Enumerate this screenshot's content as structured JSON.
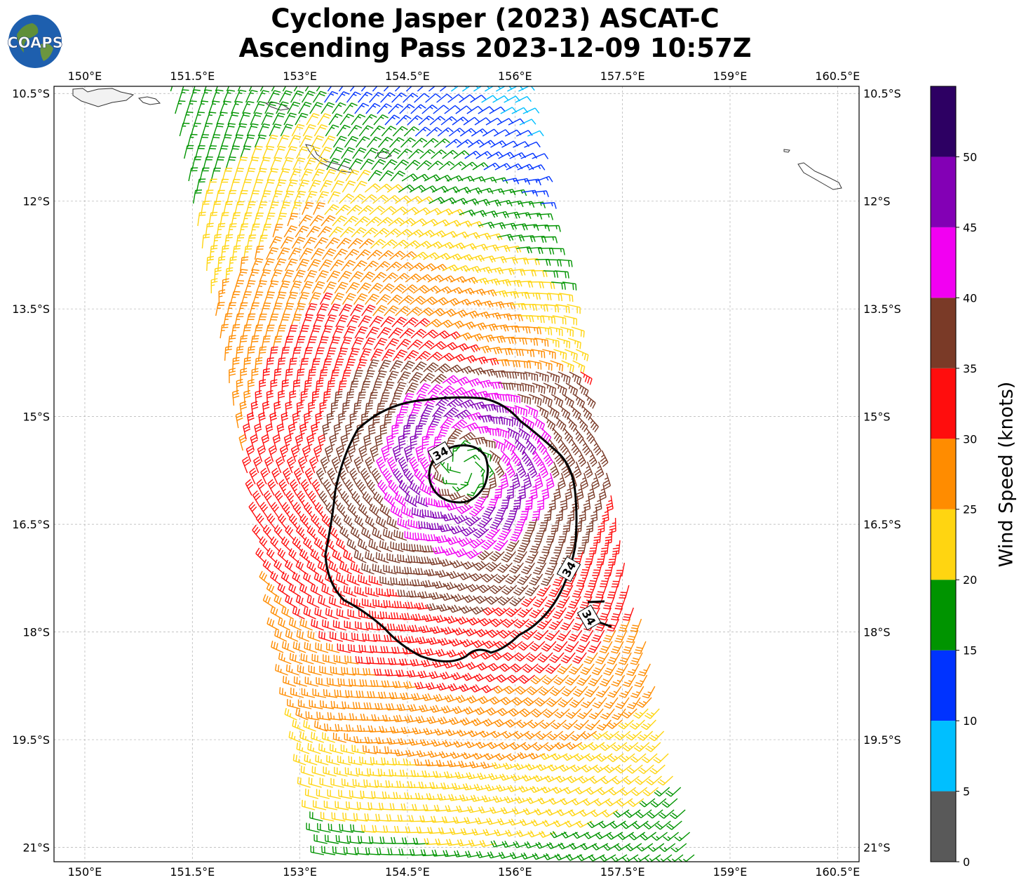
{
  "title_line1": "Cyclone Jasper (2023) ASCAT-C",
  "title_line2": "Ascending Pass 2023-12-09 10:57Z",
  "logo_text": "COAPS",
  "map": {
    "lon_ticks": [
      "150°E",
      "151.5°E",
      "153°E",
      "154.5°E",
      "156°E",
      "157.5°E",
      "159°E",
      "160.5°E"
    ],
    "lat_ticks": [
      "10.5°S",
      "12°S",
      "13.5°S",
      "15°S",
      "16.5°S",
      "18°S",
      "19.5°S",
      "21°S"
    ],
    "lon_range": [
      149.57,
      160.8
    ],
    "lat_range": [
      -10.4,
      -21.2
    ],
    "gridlines": true,
    "storm_center": {
      "lon": 155.3,
      "lat": -15.7
    },
    "contour_label": "34",
    "contour_level_knots": 34
  },
  "colorbar": {
    "label": "Wind Speed (knots)",
    "ticks": [
      "0",
      "5",
      "10",
      "15",
      "20",
      "25",
      "30",
      "35",
      "40",
      "45",
      "50"
    ],
    "bins": [
      {
        "min": 0,
        "max": 5,
        "color": "#595959"
      },
      {
        "min": 5,
        "max": 10,
        "color": "#00bfff"
      },
      {
        "min": 10,
        "max": 15,
        "color": "#0033ff"
      },
      {
        "min": 15,
        "max": 20,
        "color": "#009400"
      },
      {
        "min": 20,
        "max": 25,
        "color": "#ffd511"
      },
      {
        "min": 25,
        "max": 30,
        "color": "#ff8c00"
      },
      {
        "min": 30,
        "max": 35,
        "color": "#ff0d0d"
      },
      {
        "min": 35,
        "max": 40,
        "color": "#7a3a27"
      },
      {
        "min": 40,
        "max": 45,
        "color": "#f200f2"
      },
      {
        "min": 45,
        "max": 50,
        "color": "#8300b5"
      },
      {
        "min": 50,
        "max": 55,
        "color": "#2d0063"
      }
    ]
  }
}
